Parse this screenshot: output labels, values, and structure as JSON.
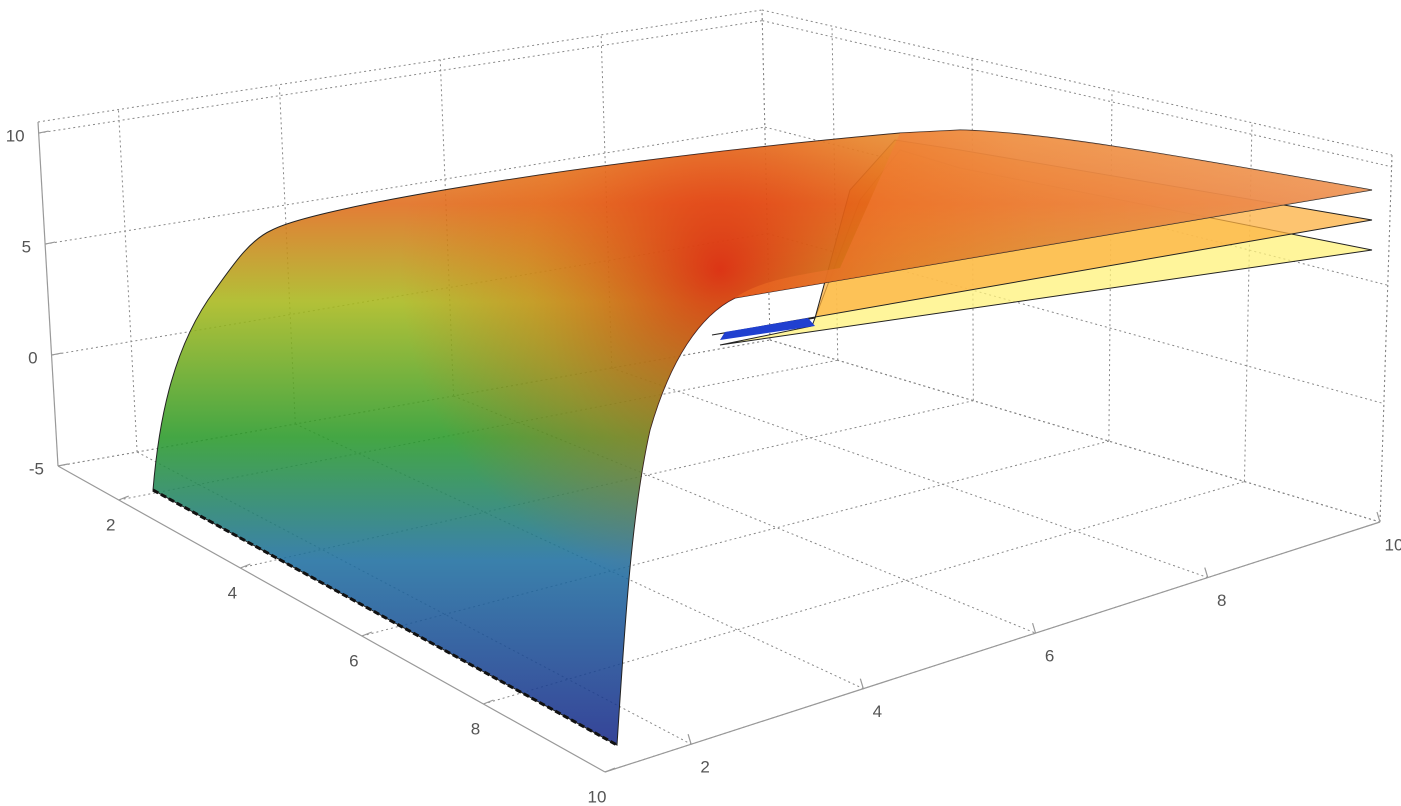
{
  "chart_data": {
    "type": "surface3d",
    "xlim": [
      1,
      10
    ],
    "xticks": [
      2,
      4,
      6,
      8,
      10
    ],
    "ylim": [
      1,
      10
    ],
    "yticks": [
      2,
      4,
      6,
      8,
      10
    ],
    "zlim": [
      -5,
      10.5
    ],
    "zticks": [
      -5,
      0,
      5,
      10
    ],
    "grid": true
  }
}
